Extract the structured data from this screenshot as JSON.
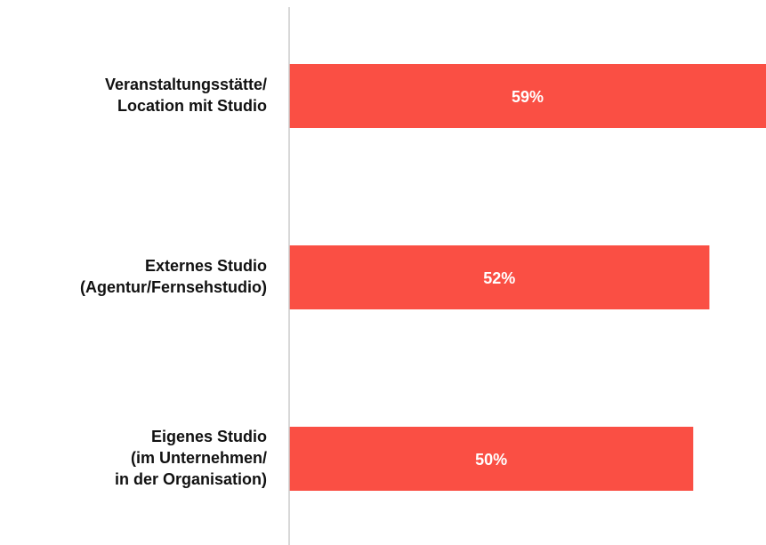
{
  "chart_data": {
    "type": "barh",
    "categories": [
      [
        "Veranstaltungsstätte/",
        "Location mit Studio"
      ],
      [
        "Externes Studio",
        "(Agentur/Fernsehstudio)"
      ],
      [
        "Eigenes Studio",
        "(im Unternehmen/",
        "in der Organisation)"
      ]
    ],
    "values": [
      59,
      52,
      50
    ],
    "value_labels": [
      "59%",
      "52%",
      "50%"
    ],
    "color": "#fa4f44",
    "xlim": [
      0,
      59
    ]
  }
}
